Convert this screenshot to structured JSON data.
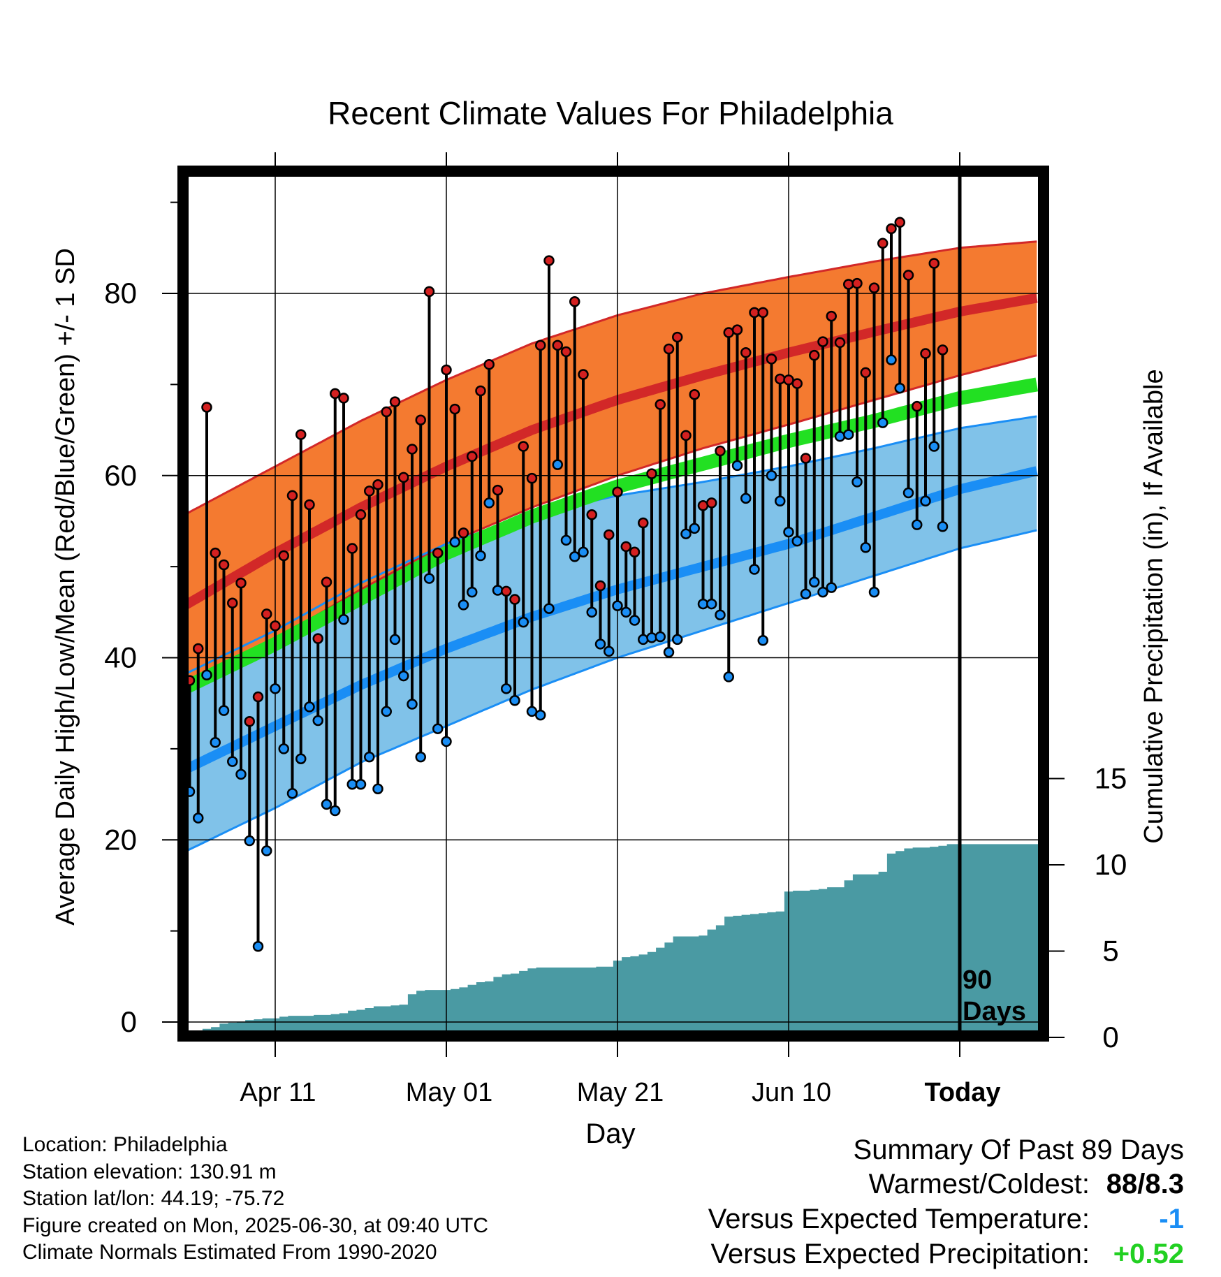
{
  "chart_data": {
    "type": "line",
    "title": "Recent Climate Values For Philadelphia",
    "xlabel": "Day",
    "ylabel": "Average Daily High/Low/Mean (Red/Blue/Green) +/- 1 SD",
    "y2label": "Cumulative Precipitation (in), If Available",
    "ylim": [
      -2,
      94
    ],
    "y2lim": [
      0,
      30.5
    ],
    "xlim": [
      -11,
      89
    ],
    "x_unit": "days relative to Apr 11",
    "x_ticks": [
      {
        "x": 0,
        "label": "Apr 11"
      },
      {
        "x": 20,
        "label": "May 01"
      },
      {
        "x": 40,
        "label": "May 21"
      },
      {
        "x": 60,
        "label": "Jun 10"
      },
      {
        "x": 80,
        "label": "Today"
      }
    ],
    "y_ticks": [
      0,
      20,
      40,
      60,
      80
    ],
    "y2_ticks": [
      0,
      5,
      10,
      15
    ],
    "grid": true,
    "today_x": 80,
    "today_label_line1": "90",
    "today_label_line2": "Days",
    "colors": {
      "high_band": "#f47a30",
      "high_line": "#d22828",
      "high_edge": "#d22828",
      "low_band": "#80c2e9",
      "low_line": "#1a8ef5",
      "low_edge": "#1a8ef5",
      "mean_line": "#22e022",
      "precip": "#4a9aa3",
      "high_marker": "#d42020",
      "low_marker": "#1a8ef5"
    },
    "normals": {
      "x": [
        -11,
        0,
        10,
        20,
        30,
        40,
        50,
        60,
        70,
        80,
        89
      ],
      "high_upper": [
        55.5,
        61,
        66,
        70.5,
        74.5,
        77.6,
        80,
        81.8,
        83.5,
        85,
        85.7
      ],
      "high_mean": [
        45.5,
        51.5,
        56.5,
        61,
        65,
        68.3,
        71,
        73.5,
        75.8,
        78,
        79.5
      ],
      "high_lower": [
        36,
        42,
        47.5,
        52.5,
        56.5,
        60,
        63,
        65.6,
        68.3,
        71,
        73.2
      ],
      "mean": [
        36.5,
        41.5,
        46.5,
        51.5,
        55.5,
        58.8,
        61.3,
        63.8,
        66,
        68.5,
        70
      ],
      "low_upper": [
        38,
        43,
        48.2,
        52.5,
        55.7,
        57.8,
        59.3,
        61,
        63,
        65.2,
        66.5
      ],
      "low_mean": [
        27.5,
        32.5,
        37,
        41,
        44.5,
        47.5,
        50,
        52.5,
        55.5,
        58.5,
        60.5
      ],
      "low_lower": [
        18.5,
        23.5,
        28.5,
        32.5,
        36.5,
        40,
        43,
        46,
        49,
        52,
        54
      ]
    },
    "series": [
      {
        "name": "High",
        "values": [
          37.5,
          41,
          67.5,
          51.5,
          50.2,
          46,
          48.2,
          33,
          35.7,
          44.8,
          43.5,
          51.2,
          57.8,
          64.5,
          56.8,
          42.1,
          48.3,
          69,
          68.5,
          52,
          55.7,
          58.3,
          59,
          67,
          68.1,
          59.8,
          62.9,
          66.1,
          80.2,
          51.5,
          71.6,
          67.3,
          53.7,
          62.1,
          69.3,
          72.2,
          58.4,
          47.3,
          46.4,
          63.2,
          59.7,
          74.3,
          83.6,
          74.3,
          73.6,
          79.1,
          71.1,
          55.7,
          47.9,
          53.5,
          58.2,
          52.2,
          51.6,
          54.8,
          60.2,
          67.8,
          73.9,
          75.2,
          64.4,
          68.9,
          56.7,
          57,
          62.7,
          75.7,
          76,
          73.5,
          77.9,
          77.9,
          72.8,
          70.6,
          70.5,
          70.1,
          61.9,
          73.2,
          74.7,
          77.5,
          74.6,
          81,
          81.1,
          71.3,
          80.6,
          85.5,
          87.1,
          87.8,
          82,
          67.6,
          73.4,
          83.3,
          73.8
        ]
      },
      {
        "name": "Low",
        "values": [
          25.3,
          22.4,
          38.1,
          30.7,
          34.2,
          28.6,
          27.2,
          19.9,
          8.3,
          18.8,
          36.6,
          30,
          25.1,
          28.9,
          34.6,
          33.1,
          23.9,
          23.2,
          44.2,
          26.1,
          26.1,
          29.1,
          25.6,
          34.1,
          42,
          38,
          34.9,
          29.1,
          48.7,
          32.2,
          30.8,
          52.7,
          45.8,
          47.2,
          51.2,
          57,
          47.4,
          36.6,
          35.3,
          43.9,
          34.1,
          33.7,
          45.4,
          61.2,
          52.9,
          51.1,
          51.6,
          45,
          41.5,
          40.7,
          45.7,
          45,
          44.1,
          42,
          42.2,
          42.3,
          40.6,
          42,
          53.6,
          54.2,
          45.9,
          45.9,
          44.7,
          37.9,
          61.1,
          57.5,
          49.7,
          41.9,
          60,
          57.2,
          53.8,
          52.8,
          47,
          48.3,
          47.2,
          47.7,
          64.3,
          64.5,
          59.3,
          52.1,
          47.2,
          65.8,
          72.7,
          69.6,
          58.1,
          54.6,
          57.2,
          63.2,
          54.4
        ]
      },
      {
        "name": "Cumulative Precipitation",
        "values": [
          0.05,
          0.1,
          0.5,
          0.6,
          0.8,
          0.85,
          0.9,
          1.0,
          1.05,
          1.1,
          1.1,
          1.2,
          1.25,
          1.25,
          1.25,
          1.3,
          1.3,
          1.35,
          1.4,
          1.55,
          1.6,
          1.7,
          1.8,
          1.8,
          1.85,
          1.9,
          2.5,
          2.7,
          2.75,
          2.75,
          2.75,
          2.8,
          2.9,
          3.05,
          3.2,
          3.25,
          3.5,
          3.65,
          3.7,
          3.85,
          4.0,
          4.05,
          4.05,
          4.05,
          4.05,
          4.05,
          4.05,
          4.05,
          4.1,
          4.1,
          4.45,
          4.65,
          4.7,
          4.8,
          4.95,
          5.2,
          5.5,
          5.85,
          5.85,
          5.85,
          5.9,
          6.25,
          6.5,
          7.0,
          7.05,
          7.1,
          7.15,
          7.2,
          7.25,
          7.3,
          8.45,
          8.5,
          8.5,
          8.55,
          8.6,
          8.7,
          8.7,
          9.1,
          9.45,
          9.45,
          9.45,
          9.6,
          10.65,
          10.8,
          10.95,
          11.0,
          11.0,
          11.05,
          11.1,
          11.2
        ]
      }
    ],
    "high_low_x_start": -10,
    "precip_x_start": -10
  },
  "location": "Location: Philadelphia",
  "elevation": "Station elevation: 130.91 m",
  "latlon": "Station lat/lon: 44.19; -75.72",
  "created": "Figure created on Mon, 2025-06-30, at 09:40 UTC",
  "normals_source": "Climate Normals Estimated From 1990-2020",
  "summary": {
    "title": "Summary Of Past 89 Days",
    "warmest_label": "Warmest/Coldest:",
    "warmest_value": "88/8.3",
    "temp_label": "Versus Expected Temperature:",
    "temp_value": "-1",
    "temp_color": "#1a8ef5",
    "precip_label": "Versus Expected Precipitation:",
    "precip_value": "+0.52",
    "precip_color": "#22d022"
  }
}
